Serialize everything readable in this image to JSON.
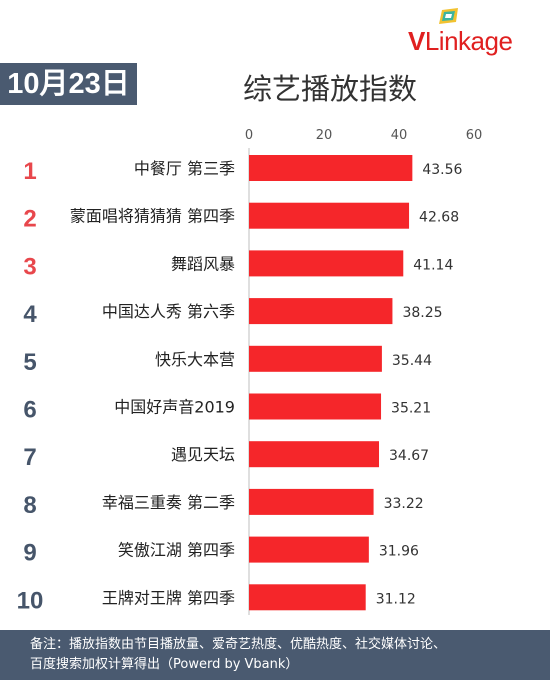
{
  "date": "10月23日",
  "logo": {
    "brand_v": "V",
    "brand_link": "Link",
    "brand_age": "age"
  },
  "footer": {
    "line1": "备注：播放指数由节目播放量、爱奇艺热度、优酷热度、社交媒体讨论、",
    "line2": "百度搜索加权计算得出（Powerd by Vbank）"
  },
  "colors": {
    "bar": "#f5262a",
    "rank_top": "#e8474c",
    "rank_other": "#46556a",
    "badge": "#4a5a70"
  },
  "chart_data": {
    "type": "bar",
    "orientation": "horizontal",
    "title": "综艺播放指数",
    "xlim": [
      0,
      60
    ],
    "x_ticks": [
      0,
      20,
      40,
      60
    ],
    "grid": false,
    "ranks": [
      "1",
      "2",
      "3",
      "4",
      "5",
      "6",
      "7",
      "8",
      "9",
      "10"
    ],
    "categories": [
      "中餐厅 第三季",
      "蒙面唱将猜猜猜 第四季",
      "舞蹈风暴",
      "中国达人秀 第六季",
      "快乐大本营",
      "中国好声音2019",
      "遇见天坛",
      "幸福三重奏 第二季",
      "笑傲江湖 第四季",
      "王牌对王牌 第四季"
    ],
    "values": [
      43.56,
      42.68,
      41.14,
      38.25,
      35.44,
      35.21,
      34.67,
      33.22,
      31.96,
      31.12
    ],
    "value_labels": [
      "43.56",
      "42.68",
      "41.14",
      "38.25",
      "35.44",
      "35.21",
      "34.67",
      "33.22",
      "31.96",
      "31.12"
    ]
  }
}
